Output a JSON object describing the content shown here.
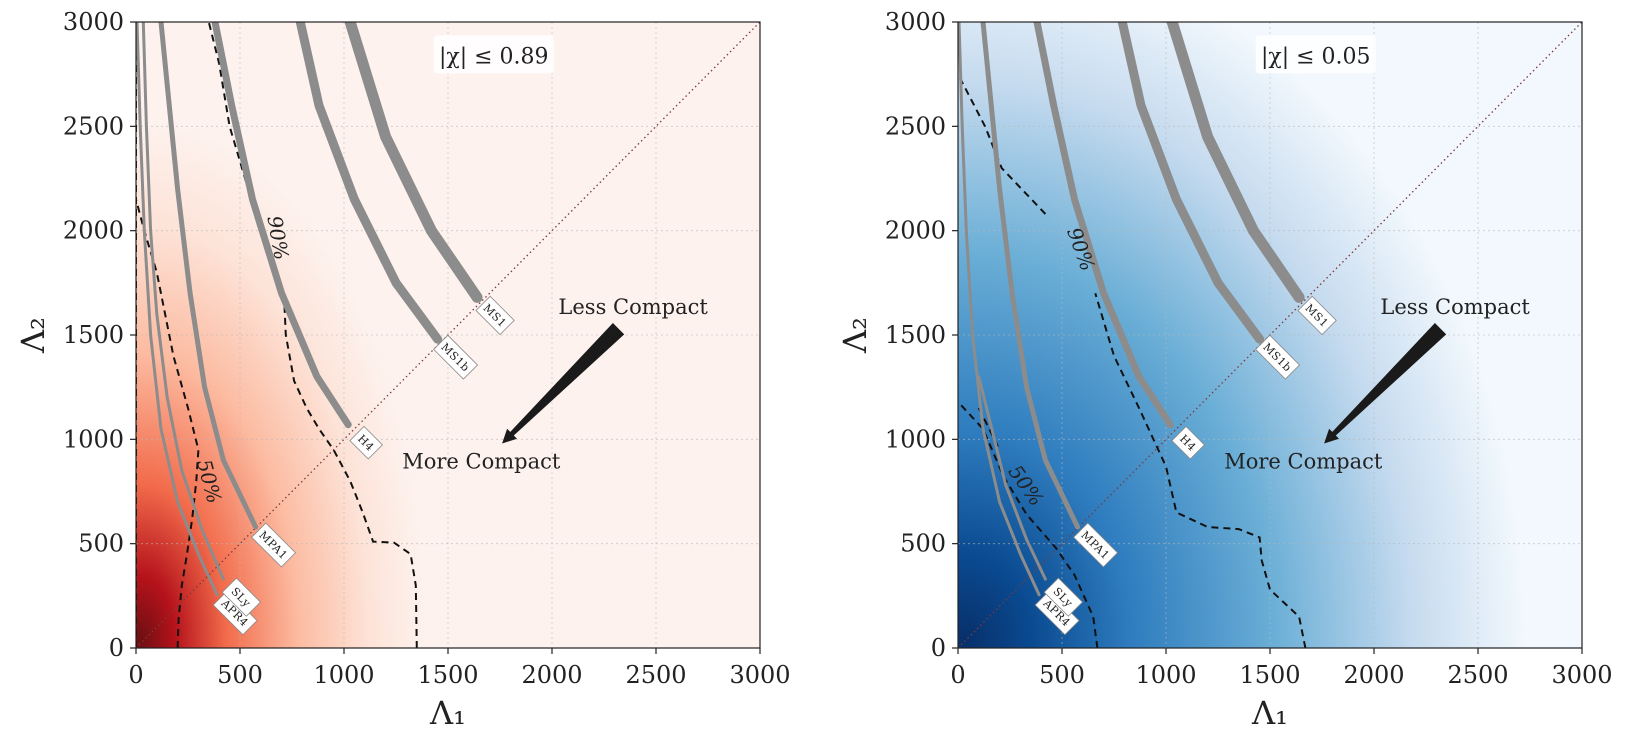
{
  "chart_data": [
    {
      "type": "heatmap",
      "colormap": "reds",
      "colors": {
        "low": "#fdf2ee",
        "mid": "#f26b4b",
        "high": "#6d0f12"
      },
      "xlabel": "Λ₁",
      "ylabel": "Λ₂",
      "xlim": [
        0,
        3000
      ],
      "ylim": [
        0,
        3000
      ],
      "x_ticks": [
        "0",
        "500",
        "1000",
        "1500",
        "2000",
        "2500",
        "3000"
      ],
      "y_ticks": [
        "0",
        "500",
        "1000",
        "1500",
        "2000",
        "2500",
        "3000"
      ],
      "grid": true,
      "spin_prior_label": "|χ| ≤ 0.89",
      "contour_labels": {
        "c50": "50%",
        "c90": "90%"
      },
      "contour_50": [
        [
          200,
          0
        ],
        [
          205,
          140
        ],
        [
          220,
          300
        ],
        [
          245,
          450
        ],
        [
          270,
          620
        ],
        [
          290,
          800
        ],
        [
          300,
          950
        ],
        [
          250,
          1150
        ],
        [
          180,
          1400
        ],
        [
          140,
          1600
        ],
        [
          100,
          1800
        ],
        [
          40,
          2000
        ],
        [
          0,
          2150
        ]
      ],
      "contour_90": [
        [
          1350,
          0
        ],
        [
          1345,
          300
        ],
        [
          1320,
          450
        ],
        [
          1240,
          505
        ],
        [
          1140,
          510
        ],
        [
          1090,
          650
        ],
        [
          1030,
          800
        ],
        [
          950,
          950
        ],
        [
          880,
          1050
        ],
        [
          820,
          1150
        ],
        [
          760,
          1280
        ],
        [
          720,
          1500
        ],
        [
          710,
          1720
        ]
      ],
      "contour_90_upper": [
        [
          545,
          2180
        ],
        [
          450,
          2500
        ],
        [
          400,
          2800
        ],
        [
          350,
          3000
        ]
      ],
      "contour_50_inner": [
        [
          0,
          0
        ],
        [
          0,
          3000
        ]
      ],
      "eos": [
        {
          "name": "APR4",
          "points": [
            [
              390,
              255
            ],
            [
              300,
              450
            ],
            [
              200,
              700
            ],
            [
              120,
              1050
            ],
            [
              70,
              1500
            ],
            [
              40,
              2000
            ],
            [
              20,
              2500
            ],
            [
              5,
              3000
            ]
          ],
          "anchor": [
            390,
            255
          ]
        },
        {
          "name": "SLy",
          "points": [
            [
              420,
              330
            ],
            [
              320,
              560
            ],
            [
              220,
              850
            ],
            [
              150,
              1200
            ],
            [
              100,
              1600
            ],
            [
              70,
              2000
            ],
            [
              50,
              2500
            ],
            [
              35,
              3000
            ]
          ],
          "anchor": [
            420,
            330
          ]
        },
        {
          "name": "MPA1",
          "points": [
            [
              575,
              580
            ],
            [
              420,
              900
            ],
            [
              330,
              1250
            ],
            [
              260,
              1700
            ],
            [
              200,
              2200
            ],
            [
              150,
              2700
            ],
            [
              120,
              3000
            ]
          ],
          "anchor": [
            575,
            580
          ]
        },
        {
          "name": "H4",
          "points": [
            [
              1020,
              1070
            ],
            [
              870,
              1300
            ],
            [
              700,
              1700
            ],
            [
              560,
              2150
            ],
            [
              460,
              2600
            ],
            [
              380,
              3000
            ]
          ],
          "anchor": [
            1020,
            1070
          ]
        },
        {
          "name": "MS1b",
          "points": [
            [
              1450,
              1480
            ],
            [
              1250,
              1750
            ],
            [
              1050,
              2150
            ],
            [
              880,
              2600
            ],
            [
              790,
              3000
            ]
          ],
          "anchor": [
            1450,
            1480
          ]
        },
        {
          "name": "MS1",
          "points": [
            [
              1640,
              1680
            ],
            [
              1420,
              2000
            ],
            [
              1200,
              2450
            ],
            [
              1030,
              3000
            ]
          ],
          "anchor": [
            1640,
            1680
          ]
        }
      ],
      "annotations": {
        "less_compact": "Less Compact",
        "more_compact": "More Compact"
      }
    },
    {
      "type": "heatmap",
      "colormap": "blues",
      "colors": {
        "low": "#f2f8fd",
        "mid": "#6aaed6",
        "high": "#08306b"
      },
      "xlabel": "Λ₁",
      "ylabel": "Λ₂",
      "xlim": [
        0,
        3000
      ],
      "ylim": [
        0,
        3000
      ],
      "x_ticks": [
        "0",
        "500",
        "1000",
        "1500",
        "2000",
        "2500",
        "3000"
      ],
      "y_ticks": [
        "0",
        "500",
        "1000",
        "1500",
        "2000",
        "2500",
        "3000"
      ],
      "grid": true,
      "spin_prior_label": "|χ| ≤ 0.05",
      "contour_labels": {
        "c50": "50%",
        "c90": "90%"
      },
      "contour_50": [
        [
          670,
          0
        ],
        [
          650,
          150
        ],
        [
          560,
          350
        ],
        [
          470,
          480
        ],
        [
          330,
          640
        ],
        [
          220,
          820
        ],
        [
          120,
          1050
        ],
        [
          0,
          1180
        ]
      ],
      "contour_90": [
        [
          1670,
          0
        ],
        [
          1640,
          150
        ],
        [
          1500,
          280
        ],
        [
          1460,
          420
        ],
        [
          1450,
          530
        ],
        [
          1350,
          570
        ],
        [
          1200,
          580
        ],
        [
          1050,
          650
        ],
        [
          1000,
          870
        ],
        [
          870,
          1150
        ],
        [
          750,
          1400
        ],
        [
          660,
          1700
        ]
      ],
      "contour_90_upper": [
        [
          420,
          2080
        ],
        [
          210,
          2300
        ],
        [
          130,
          2500
        ],
        [
          0,
          2750
        ]
      ],
      "contour_50_inner": [
        [
          100,
          1150
        ],
        [
          200,
          950
        ]
      ],
      "eos": [
        {
          "name": "APR4",
          "points": [
            [
              390,
              255
            ],
            [
              300,
              450
            ],
            [
              200,
              700
            ],
            [
              120,
              1050
            ],
            [
              70,
              1500
            ],
            [
              40,
              2000
            ],
            [
              20,
              2500
            ],
            [
              5,
              3000
            ]
          ],
          "anchor": [
            390,
            255
          ]
        },
        {
          "name": "SLy",
          "points": [
            [
              420,
              330
            ],
            [
              330,
              520
            ],
            [
              230,
              780
            ],
            [
              150,
              1100
            ],
            [
              100,
              1300
            ]
          ],
          "anchor": [
            420,
            330
          ]
        },
        {
          "name": "MPA1",
          "points": [
            [
              575,
              580
            ],
            [
              420,
              900
            ],
            [
              330,
              1250
            ],
            [
              260,
              1700
            ],
            [
              200,
              2200
            ],
            [
              150,
              2700
            ],
            [
              120,
              3000
            ]
          ],
          "anchor": [
            575,
            580
          ]
        },
        {
          "name": "H4",
          "points": [
            [
              1020,
              1070
            ],
            [
              870,
              1300
            ],
            [
              700,
              1700
            ],
            [
              560,
              2150
            ],
            [
              460,
              2600
            ],
            [
              380,
              3000
            ]
          ],
          "anchor": [
            1020,
            1070
          ]
        },
        {
          "name": "MS1b",
          "points": [
            [
              1450,
              1480
            ],
            [
              1250,
              1750
            ],
            [
              1050,
              2150
            ],
            [
              880,
              2600
            ],
            [
              790,
              3000
            ]
          ],
          "anchor": [
            1450,
            1480
          ]
        },
        {
          "name": "MS1",
          "points": [
            [
              1640,
              1680
            ],
            [
              1420,
              2000
            ],
            [
              1200,
              2450
            ],
            [
              1030,
              3000
            ]
          ],
          "anchor": [
            1640,
            1680
          ]
        }
      ],
      "annotations": {
        "less_compact": "Less Compact",
        "more_compact": "More Compact"
      }
    }
  ]
}
